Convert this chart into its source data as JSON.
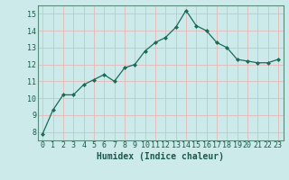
{
  "x": [
    0,
    1,
    2,
    3,
    4,
    5,
    6,
    7,
    8,
    9,
    10,
    11,
    12,
    13,
    14,
    15,
    16,
    17,
    18,
    19,
    20,
    21,
    22,
    23
  ],
  "y": [
    7.9,
    9.3,
    10.2,
    10.2,
    10.8,
    11.1,
    11.4,
    11.0,
    11.8,
    12.0,
    12.8,
    13.3,
    13.6,
    14.2,
    15.2,
    14.3,
    14.0,
    13.3,
    13.0,
    12.3,
    12.2,
    12.1,
    12.1,
    12.3
  ],
  "xlim": [
    -0.5,
    23.5
  ],
  "ylim": [
    7.5,
    15.5
  ],
  "yticks": [
    8,
    9,
    10,
    11,
    12,
    13,
    14,
    15
  ],
  "xticks": [
    0,
    1,
    2,
    3,
    4,
    5,
    6,
    7,
    8,
    9,
    10,
    11,
    12,
    13,
    14,
    15,
    16,
    17,
    18,
    19,
    20,
    21,
    22,
    23
  ],
  "xlabel": "Humidex (Indice chaleur)",
  "line_color": "#1a6b5a",
  "marker": "D",
  "markersize": 2.0,
  "bg_color": "#cceaea",
  "grid_color_h": "#c8dede",
  "grid_color_v": "#e8b8b8",
  "xlabel_fontsize": 7,
  "tick_fontsize": 6,
  "label_color": "#1a5a4a"
}
